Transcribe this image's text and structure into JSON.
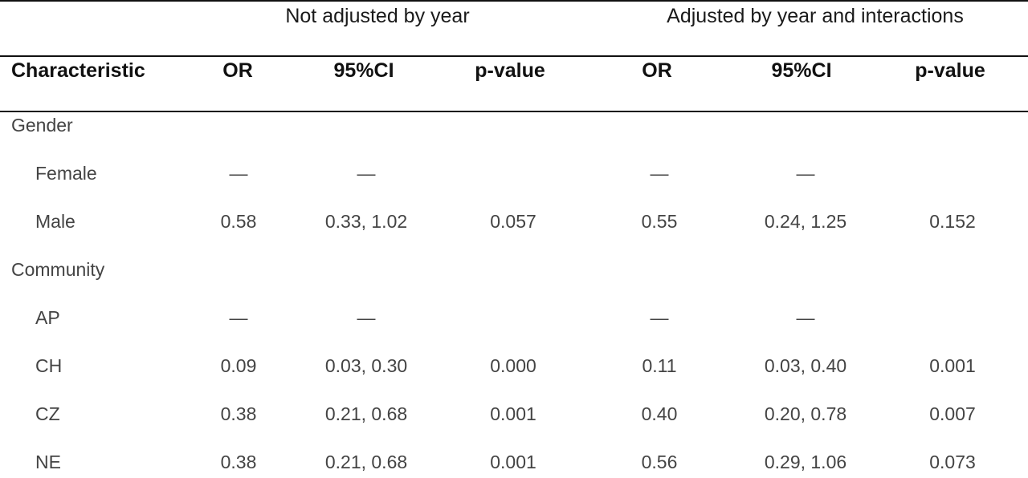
{
  "table": {
    "group_headers": [
      "Not adjusted by year",
      "Adjusted by year and interactions"
    ],
    "columns": [
      "Characteristic",
      "OR",
      "95%CI",
      "p-value",
      "OR",
      "95%CI",
      "p-value"
    ],
    "rows": [
      {
        "label": "Gender",
        "indent": 0,
        "cells": [
          "",
          "",
          "",
          "",
          "",
          ""
        ]
      },
      {
        "label": "Female",
        "indent": 1,
        "cells": [
          "—",
          "—",
          "",
          "—",
          "—",
          ""
        ]
      },
      {
        "label": "Male",
        "indent": 1,
        "cells": [
          "0.58",
          "0.33, 1.02",
          "0.057",
          "0.55",
          "0.24, 1.25",
          "0.152"
        ]
      },
      {
        "label": "Community",
        "indent": 0,
        "cells": [
          "",
          "",
          "",
          "",
          "",
          ""
        ]
      },
      {
        "label": "AP",
        "indent": 1,
        "cells": [
          "—",
          "—",
          "",
          "—",
          "—",
          ""
        ]
      },
      {
        "label": "CH",
        "indent": 1,
        "cells": [
          "0.09",
          "0.03, 0.30",
          "0.000",
          "0.11",
          "0.03, 0.40",
          "0.001"
        ]
      },
      {
        "label": "CZ",
        "indent": 1,
        "cells": [
          "0.38",
          "0.21, 0.68",
          "0.001",
          "0.40",
          "0.20, 0.78",
          "0.007"
        ]
      },
      {
        "label": "NE",
        "indent": 1,
        "cells": [
          "0.38",
          "0.21, 0.68",
          "0.001",
          "0.56",
          "0.29, 1.06",
          "0.073"
        ]
      }
    ]
  }
}
